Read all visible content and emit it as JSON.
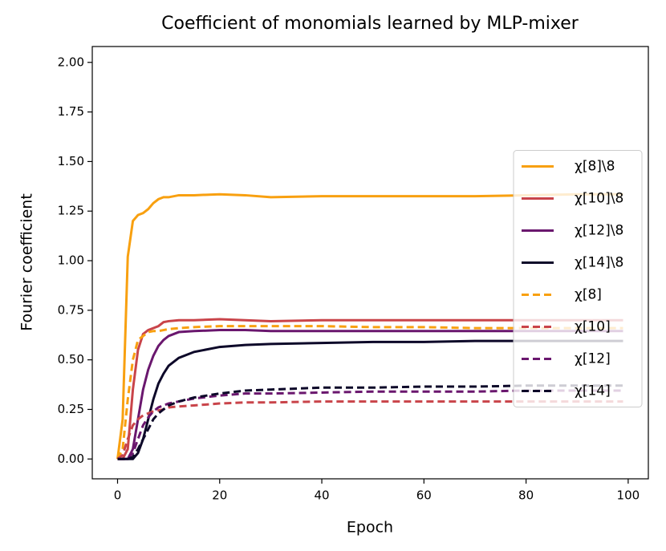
{
  "chart_data": {
    "type": "line",
    "title": "Coefficient of monomials learned by MLP-mixer",
    "xlabel": "Epoch",
    "ylabel": "Fourier coefficient",
    "x": [
      0,
      1,
      2,
      3,
      4,
      5,
      6,
      7,
      8,
      9,
      10,
      12,
      15,
      20,
      25,
      30,
      40,
      50,
      60,
      70,
      80,
      90,
      99
    ],
    "series": [
      {
        "name": "χ[8]\\8",
        "color": "#f8a010",
        "linestyle": "solid",
        "values": [
          0,
          0.2,
          1.02,
          1.2,
          1.23,
          1.24,
          1.26,
          1.29,
          1.31,
          1.32,
          1.32,
          1.33,
          1.33,
          1.335,
          1.33,
          1.32,
          1.325,
          1.325,
          1.325,
          1.325,
          1.33,
          1.335,
          1.335
        ]
      },
      {
        "name": "χ[10]\\8",
        "color": "#c9444a",
        "linestyle": "solid",
        "values": [
          0,
          0,
          0.05,
          0.35,
          0.55,
          0.63,
          0.65,
          0.66,
          0.67,
          0.69,
          0.695,
          0.7,
          0.7,
          0.705,
          0.7,
          0.695,
          0.7,
          0.7,
          0.7,
          0.7,
          0.7,
          0.7,
          0.7
        ]
      },
      {
        "name": "χ[12]\\8",
        "color": "#6a176e",
        "linestyle": "solid",
        "values": [
          0,
          0,
          0,
          0.05,
          0.2,
          0.35,
          0.45,
          0.52,
          0.57,
          0.6,
          0.62,
          0.64,
          0.645,
          0.65,
          0.65,
          0.645,
          0.645,
          0.645,
          0.645,
          0.645,
          0.645,
          0.645,
          0.645
        ]
      },
      {
        "name": "χ[14]\\8",
        "color": "#0d0829",
        "linestyle": "solid",
        "values": [
          0,
          0,
          0,
          0,
          0.03,
          0.1,
          0.2,
          0.3,
          0.38,
          0.43,
          0.47,
          0.51,
          0.54,
          0.565,
          0.575,
          0.58,
          0.585,
          0.59,
          0.59,
          0.595,
          0.595,
          0.595,
          0.595
        ]
      },
      {
        "name": "χ[8]",
        "color": "#f8a010",
        "linestyle": "dashed",
        "values": [
          0,
          0.05,
          0.3,
          0.5,
          0.6,
          0.62,
          0.64,
          0.645,
          0.645,
          0.65,
          0.655,
          0.66,
          0.665,
          0.67,
          0.67,
          0.67,
          0.67,
          0.665,
          0.665,
          0.66,
          0.66,
          0.66,
          0.66
        ]
      },
      {
        "name": "χ[10]",
        "color": "#c9444a",
        "linestyle": "dashed",
        "values": [
          0,
          0.02,
          0.1,
          0.17,
          0.2,
          0.22,
          0.23,
          0.24,
          0.245,
          0.25,
          0.26,
          0.265,
          0.27,
          0.28,
          0.285,
          0.285,
          0.29,
          0.29,
          0.29,
          0.29,
          0.29,
          0.29,
          0.29
        ]
      },
      {
        "name": "χ[12]",
        "color": "#6a176e",
        "linestyle": "dashed",
        "values": [
          0,
          0,
          0,
          0.03,
          0.1,
          0.17,
          0.21,
          0.24,
          0.26,
          0.27,
          0.28,
          0.29,
          0.305,
          0.32,
          0.33,
          0.33,
          0.335,
          0.34,
          0.34,
          0.34,
          0.345,
          0.345,
          0.345
        ]
      },
      {
        "name": "χ[14]",
        "color": "#0d0829",
        "linestyle": "dashed",
        "values": [
          0,
          0,
          0,
          0.01,
          0.05,
          0.1,
          0.15,
          0.2,
          0.23,
          0.25,
          0.27,
          0.29,
          0.31,
          0.33,
          0.345,
          0.35,
          0.36,
          0.36,
          0.365,
          0.365,
          0.37,
          0.37,
          0.37
        ]
      }
    ],
    "xlim": [
      -4.95,
      103.95
    ],
    "ylim": [
      -0.1,
      2.08
    ],
    "xticks": [
      0,
      20,
      40,
      60,
      80,
      100
    ],
    "yticks": [
      {
        "value": 0,
        "label": "0.00"
      },
      {
        "value": 0.25,
        "label": "0.25"
      },
      {
        "value": 0.5,
        "label": "0.50"
      },
      {
        "value": 0.75,
        "label": "0.75"
      },
      {
        "value": 1,
        "label": "1.00"
      },
      {
        "value": 1.25,
        "label": "1.25"
      },
      {
        "value": 1.5,
        "label": "1.50"
      },
      {
        "value": 1.75,
        "label": "1.75"
      },
      {
        "value": 2,
        "label": "2.00"
      }
    ],
    "grid": false,
    "legend": "center right"
  }
}
